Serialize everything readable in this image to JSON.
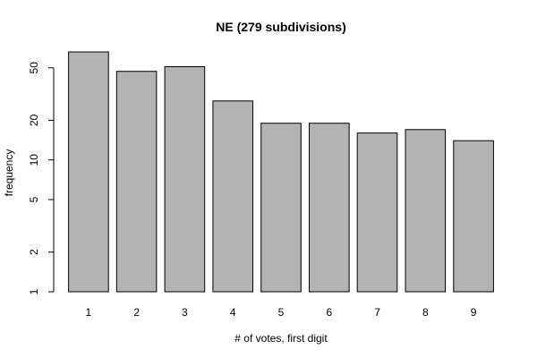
{
  "chart_data": {
    "type": "bar",
    "title": "NE (279 subdivisions)",
    "xlabel": "# of votes, first digit",
    "ylabel": "frequency",
    "categories": [
      "1",
      "2",
      "3",
      "4",
      "5",
      "6",
      "7",
      "8",
      "9"
    ],
    "values": [
      66,
      47,
      51,
      28,
      19,
      19,
      16,
      17,
      14
    ],
    "y_scale": "log",
    "ylim": [
      1,
      66
    ],
    "y_ticks": [
      1,
      2,
      5,
      10,
      20,
      50
    ],
    "y_tick_labels": [
      "1",
      "2",
      "5",
      "10",
      "20",
      "50"
    ],
    "grid": false,
    "colors": {
      "bar_fill": "#b3b3b3",
      "bar_stroke": "#000000"
    }
  }
}
